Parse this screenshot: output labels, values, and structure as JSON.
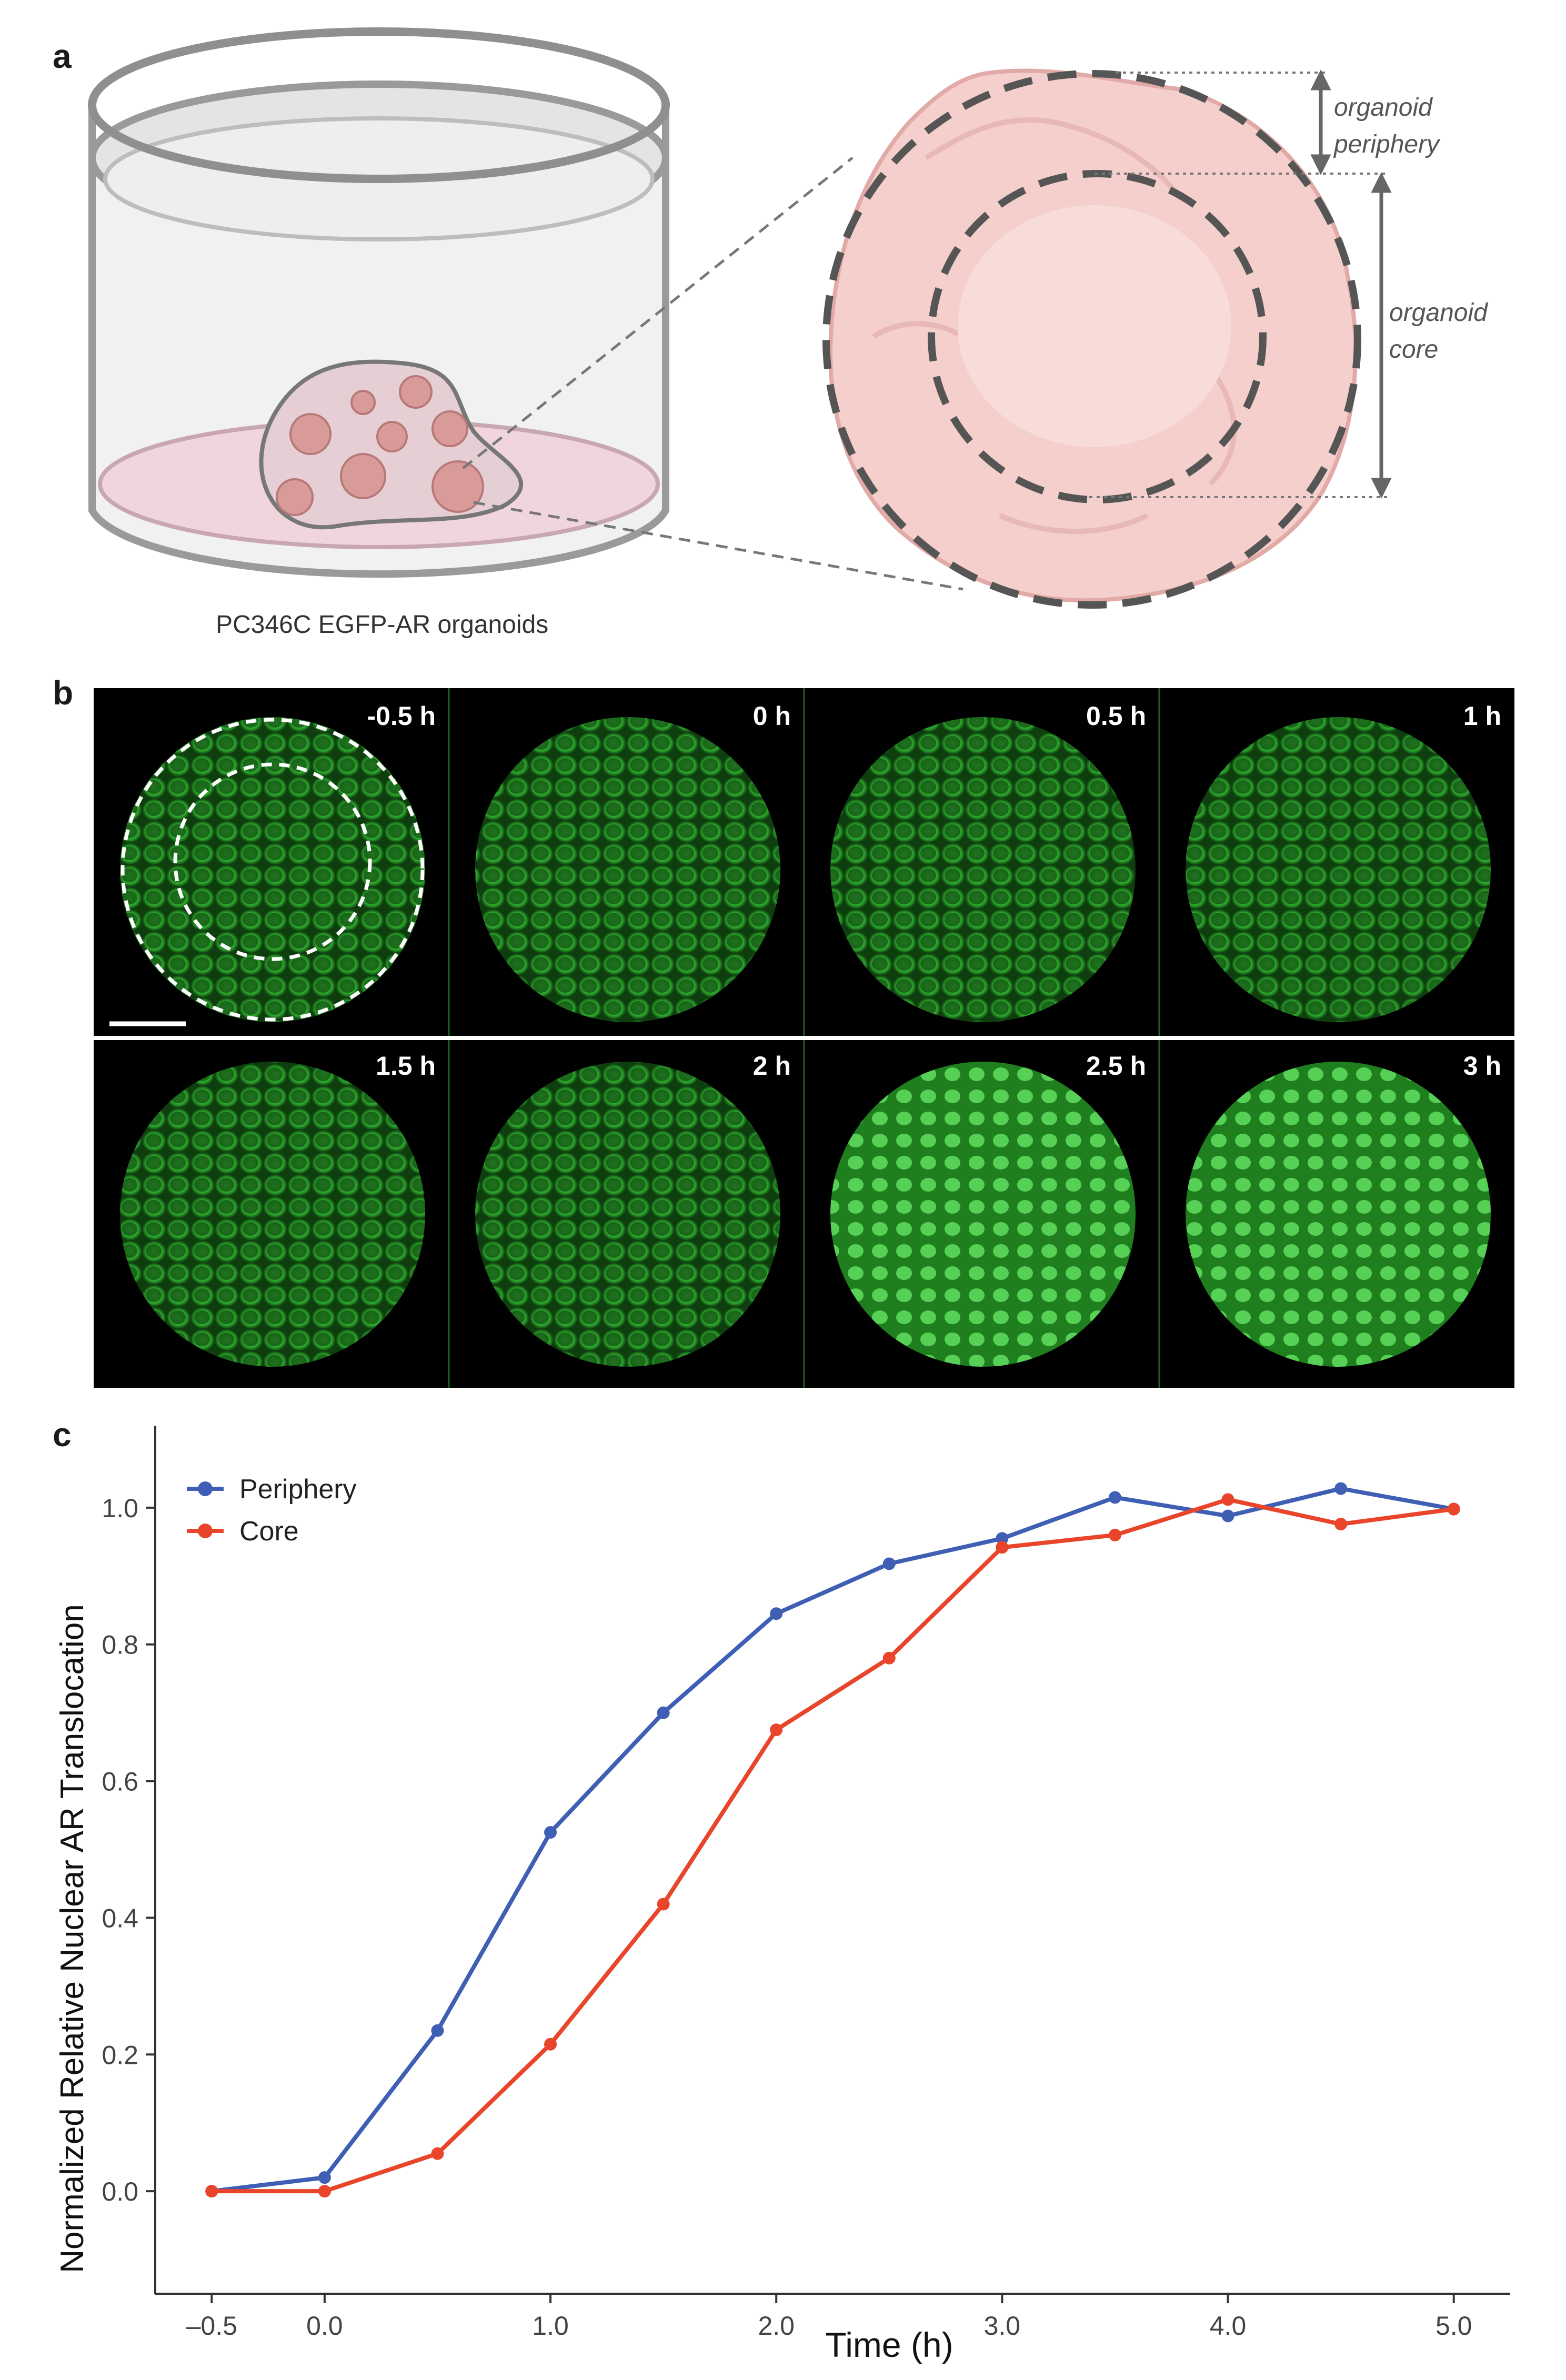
{
  "panels": {
    "a": "a",
    "b": "b",
    "c": "c"
  },
  "panel_a": {
    "dish_caption": "PC346C EGFP-AR organoids",
    "label_periphery_1": "organoid",
    "label_periphery_2": "periphery",
    "label_core_1": "organoid",
    "label_core_2": "core",
    "colors": {
      "organoid": "#f2c9c6",
      "dish_medium": "#f0d6dc",
      "dash": "#555555"
    }
  },
  "panel_b": {
    "time_labels": [
      "-0.5 h",
      "0 h",
      "0.5 h",
      "1 h",
      "1.5 h",
      "2 h",
      "2.5 h",
      "3 h"
    ],
    "colors": {
      "background": "#000000",
      "fluorescence": "#2fae2f"
    }
  },
  "chart_data": {
    "type": "line",
    "xlabel": "Time (h)",
    "ylabel": "Normalized Relative Nuclear AR Translocation",
    "xlim": [
      -0.75,
      5.25
    ],
    "ylim": [
      -0.15,
      1.12
    ],
    "x_ticks": [
      -0.5,
      0.0,
      1.0,
      2.0,
      3.0,
      4.0,
      5.0
    ],
    "x_tick_labels": [
      "–0.5",
      "0.0",
      "1.0",
      "2.0",
      "3.0",
      "4.0",
      "5.0"
    ],
    "y_ticks": [
      0.0,
      0.2,
      0.4,
      0.6,
      0.8,
      1.0
    ],
    "y_tick_labels": [
      "0.0",
      "0.2",
      "0.4",
      "0.6",
      "0.8",
      "1.0"
    ],
    "legend_position": "top-left",
    "grid": false,
    "x": [
      -0.5,
      0.0,
      0.5,
      1.0,
      1.5,
      2.0,
      2.5,
      3.0,
      3.5,
      4.0,
      4.5,
      5.0
    ],
    "series": [
      {
        "name": "Periphery",
        "color": "#3f5fb5",
        "values": [
          0.0,
          0.02,
          0.235,
          0.525,
          0.7,
          0.845,
          0.918,
          0.955,
          1.015,
          0.988,
          1.028,
          0.998
        ]
      },
      {
        "name": "Core",
        "color": "#e8452a",
        "values": [
          0.0,
          0.0,
          0.055,
          0.215,
          0.42,
          0.675,
          0.78,
          0.942,
          0.96,
          1.012,
          0.976,
          0.998
        ]
      }
    ]
  }
}
